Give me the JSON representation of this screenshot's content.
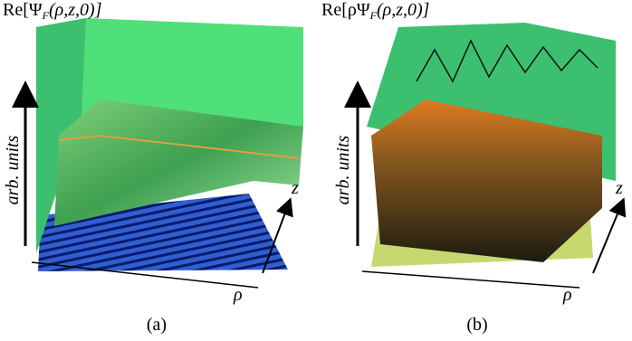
{
  "panels": [
    {
      "title": {
        "pre": "Re[Ψ",
        "sub": "F",
        "post": "(ρ,z,0)]"
      },
      "y_label": "arb. units",
      "x_label": "ρ",
      "z_label": "z",
      "caption": "(a)"
    },
    {
      "title": {
        "pre": "Re[ρΨ",
        "sub": "F",
        "post": "(ρ,z,0)]"
      },
      "y_label": "arb. units",
      "x_label": "ρ",
      "z_label": "z",
      "caption": "(b)"
    }
  ]
}
